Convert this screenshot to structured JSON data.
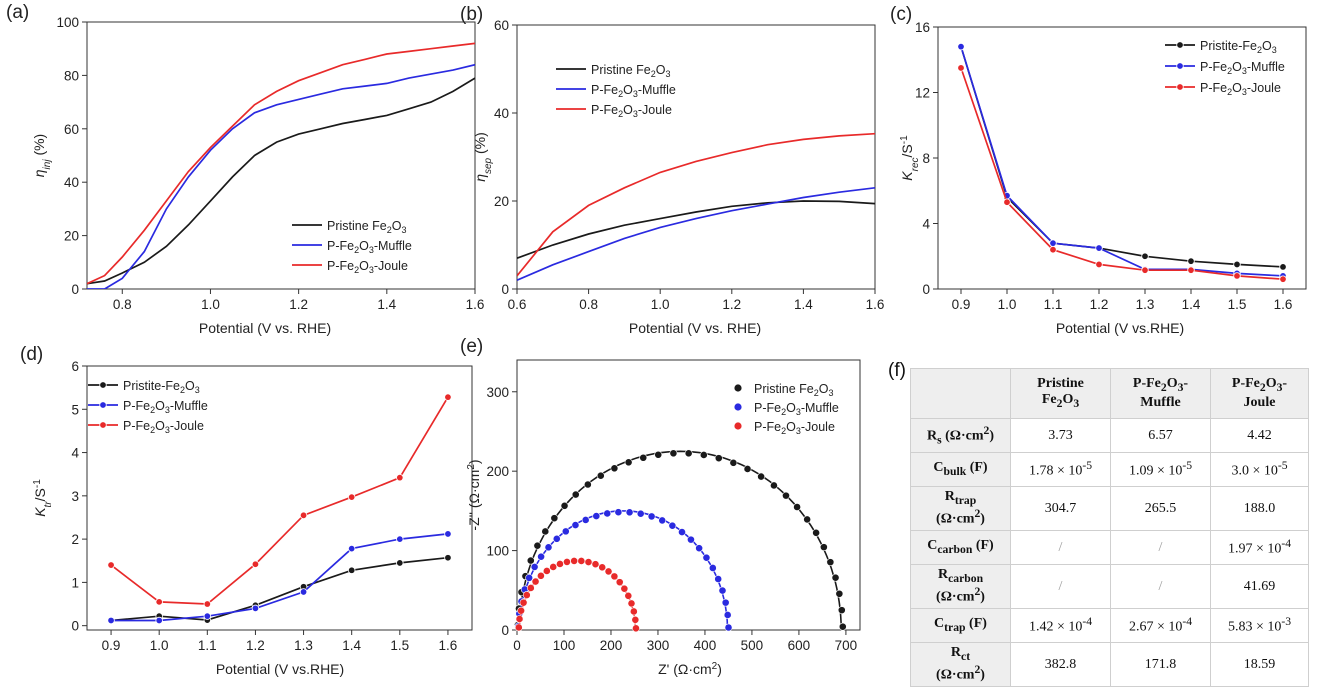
{
  "colors": {
    "black": "#1a1a1a",
    "blue": "#2a2ae0",
    "red": "#e82a2a"
  },
  "chart_data": [
    {
      "panel": "(a)",
      "type": "line",
      "xlabel": "Potential (V vs. RHE)",
      "ylabel": "η_inj (%)",
      "ylabel_main": "η",
      "ylabel_sub": "inj",
      "ylabel_tail": " (%)",
      "xlim": [
        0.72,
        1.6
      ],
      "ylim": [
        0,
        100
      ],
      "xticks": [
        "0.8",
        "1.0",
        "1.2",
        "1.4",
        "1.6"
      ],
      "xtick_values": [
        0.8,
        1.0,
        1.2,
        1.4,
        1.6
      ],
      "yticks": [
        "0",
        "20",
        "40",
        "60",
        "80",
        "100"
      ],
      "ytick_values": [
        0,
        20,
        40,
        60,
        80,
        100
      ],
      "legend": [
        "Pristine Fe2O3",
        "P-Fe2O3-Muffle",
        "P-Fe2O3-Joule"
      ],
      "series": [
        {
          "name": "Pristine Fe2O3",
          "color": "black",
          "x": [
            0.72,
            0.76,
            0.8,
            0.85,
            0.9,
            0.95,
            1.0,
            1.05,
            1.1,
            1.15,
            1.2,
            1.25,
            1.3,
            1.35,
            1.4,
            1.45,
            1.5,
            1.55,
            1.6
          ],
          "y": [
            2,
            3,
            6,
            10,
            16,
            24,
            33,
            42,
            50,
            55,
            58,
            60,
            62,
            63.5,
            65,
            67.5,
            70,
            74,
            79
          ]
        },
        {
          "name": "P-Fe2O3-Muffle",
          "color": "blue",
          "x": [
            0.72,
            0.76,
            0.8,
            0.85,
            0.9,
            0.95,
            1.0,
            1.05,
            1.1,
            1.15,
            1.2,
            1.25,
            1.3,
            1.35,
            1.4,
            1.45,
            1.5,
            1.55,
            1.6
          ],
          "y": [
            0,
            0,
            4,
            14,
            30,
            42,
            52,
            60,
            66,
            69,
            71,
            73,
            75,
            76,
            77,
            79,
            80.5,
            82,
            84
          ]
        },
        {
          "name": "P-Fe2O3-Joule",
          "color": "red",
          "x": [
            0.72,
            0.76,
            0.8,
            0.85,
            0.9,
            0.95,
            1.0,
            1.05,
            1.1,
            1.15,
            1.2,
            1.25,
            1.3,
            1.35,
            1.4,
            1.45,
            1.5,
            1.55,
            1.6
          ],
          "y": [
            2,
            5,
            12,
            22,
            33,
            44,
            53,
            61,
            69,
            74,
            78,
            81,
            84,
            86,
            88,
            89,
            90,
            91,
            92
          ]
        }
      ]
    },
    {
      "panel": "(b)",
      "type": "line",
      "xlabel": "Potential (V vs. RHE)",
      "ylabel": "η_sep (%)",
      "ylabel_main": "η",
      "ylabel_sub": "sep",
      "ylabel_tail": " (%)",
      "xlim": [
        0.6,
        1.6
      ],
      "ylim": [
        0,
        60
      ],
      "xticks": [
        "0.6",
        "0.8",
        "1.0",
        "1.2",
        "1.4",
        "1.6"
      ],
      "xtick_values": [
        0.6,
        0.8,
        1.0,
        1.2,
        1.4,
        1.6
      ],
      "yticks": [
        "0",
        "20",
        "40",
        "60"
      ],
      "ytick_values": [
        0,
        20,
        40,
        60
      ],
      "legend": [
        "Pristine Fe2O3",
        "P-Fe2O3-Muffle",
        "P-Fe2O3-Joule"
      ],
      "series": [
        {
          "name": "Pristine Fe2O3",
          "color": "black",
          "x": [
            0.6,
            0.7,
            0.8,
            0.9,
            1.0,
            1.1,
            1.2,
            1.3,
            1.4,
            1.5,
            1.6
          ],
          "y": [
            7,
            10,
            12.5,
            14.5,
            16,
            17.5,
            18.8,
            19.6,
            20,
            19.9,
            19.4
          ]
        },
        {
          "name": "P-Fe2O3-Muffle",
          "color": "blue",
          "x": [
            0.6,
            0.7,
            0.8,
            0.9,
            1.0,
            1.1,
            1.2,
            1.3,
            1.4,
            1.5,
            1.6
          ],
          "y": [
            2,
            5.5,
            8.5,
            11.5,
            14,
            16,
            17.8,
            19.3,
            20.8,
            22,
            23
          ]
        },
        {
          "name": "P-Fe2O3-Joule",
          "color": "red",
          "x": [
            0.6,
            0.65,
            0.7,
            0.8,
            0.9,
            1.0,
            1.1,
            1.2,
            1.3,
            1.4,
            1.5,
            1.6
          ],
          "y": [
            3,
            8,
            13,
            19,
            23,
            26.5,
            29,
            31,
            32.8,
            34,
            34.8,
            35.3
          ]
        }
      ]
    },
    {
      "panel": "(c)",
      "type": "line",
      "xlabel": "Potential (V vs.RHE)",
      "ylabel": "K_rec/S^-1",
      "ylabel_main": "K",
      "ylabel_sub": "rec",
      "ylabel_tail": "/S",
      "ylabel_sup": "-1",
      "xlim": [
        0.85,
        1.65
      ],
      "ylim": [
        0,
        16
      ],
      "xticks": [
        "0.9",
        "1.0",
        "1.1",
        "1.2",
        "1.3",
        "1.4",
        "1.5",
        "1.6"
      ],
      "xtick_values": [
        0.9,
        1.0,
        1.1,
        1.2,
        1.3,
        1.4,
        1.5,
        1.6
      ],
      "yticks": [
        "0",
        "4",
        "8",
        "12",
        "16"
      ],
      "ytick_values": [
        0,
        4,
        8,
        12,
        16
      ],
      "legend": [
        "Pristite-Fe2O3",
        "P-Fe2O3-Muffle",
        "P-Fe2O3-Joule"
      ],
      "series": [
        {
          "name": "Pristite-Fe2O3",
          "color": "black",
          "x": [
            0.9,
            1.0,
            1.1,
            1.2,
            1.3,
            1.4,
            1.5,
            1.6
          ],
          "y": [
            14.8,
            5.6,
            2.8,
            2.5,
            2.0,
            1.7,
            1.5,
            1.35
          ]
        },
        {
          "name": "P-Fe2O3-Muffle",
          "color": "blue",
          "x": [
            0.9,
            1.0,
            1.1,
            1.2,
            1.3,
            1.4,
            1.5,
            1.6
          ],
          "y": [
            14.8,
            5.7,
            2.8,
            2.5,
            1.2,
            1.2,
            0.95,
            0.8
          ]
        },
        {
          "name": "P-Fe2O3-Joule",
          "color": "red",
          "x": [
            0.9,
            1.0,
            1.1,
            1.2,
            1.3,
            1.4,
            1.5,
            1.6
          ],
          "y": [
            13.5,
            5.3,
            2.4,
            1.5,
            1.15,
            1.15,
            0.8,
            0.6
          ]
        }
      ]
    },
    {
      "panel": "(d)",
      "type": "line",
      "xlabel": "Potential (V vs.RHE)",
      "ylabel": "K_tr/S^-1",
      "ylabel_main": "K",
      "ylabel_sub": "tr",
      "ylabel_tail": "/S",
      "ylabel_sup": "-1",
      "xlim": [
        0.85,
        1.65
      ],
      "ylim": [
        -0.1,
        6
      ],
      "xticks": [
        "0.9",
        "1.0",
        "1.1",
        "1.2",
        "1.3",
        "1.4",
        "1.5",
        "1.6"
      ],
      "xtick_values": [
        0.9,
        1.0,
        1.1,
        1.2,
        1.3,
        1.4,
        1.5,
        1.6
      ],
      "yticks": [
        "0",
        "1",
        "2",
        "3",
        "4",
        "5",
        "6"
      ],
      "ytick_values": [
        0,
        1,
        2,
        3,
        4,
        5,
        6
      ],
      "legend": [
        "Pristite-Fe2O3",
        "P-Fe2O3-Muffle",
        "P-Fe2O3-Joule"
      ],
      "series": [
        {
          "name": "Pristite-Fe2O3",
          "color": "black",
          "x": [
            0.9,
            1.0,
            1.1,
            1.2,
            1.3,
            1.4,
            1.5,
            1.6
          ],
          "y": [
            0.12,
            0.22,
            0.13,
            0.47,
            0.9,
            1.28,
            1.45,
            1.57
          ]
        },
        {
          "name": "P-Fe2O3-Muffle",
          "color": "blue",
          "x": [
            0.9,
            1.0,
            1.1,
            1.2,
            1.3,
            1.4,
            1.5,
            1.6
          ],
          "y": [
            0.12,
            0.12,
            0.22,
            0.4,
            0.78,
            1.78,
            2.0,
            2.12
          ]
        },
        {
          "name": "P-Fe2O3-Joule",
          "color": "red",
          "x": [
            0.9,
            1.0,
            1.1,
            1.2,
            1.3,
            1.4,
            1.5,
            1.6
          ],
          "y": [
            1.4,
            0.55,
            0.5,
            1.42,
            2.55,
            2.97,
            3.42,
            5.28
          ]
        }
      ]
    },
    {
      "panel": "(e)",
      "type": "scatter",
      "xlabel": "Z' (Ω·cm²)",
      "ylabel": "-Z'' (Ω·cm²)",
      "ylabel_main": "-Z'' (Ω·cm",
      "ylabel_sup": "2",
      "ylabel_tail": ")",
      "xlabel_main": "Z' (Ω·cm",
      "xlabel_sup": "2",
      "xlabel_tail": ")",
      "xlim": [
        0,
        730
      ],
      "ylim": [
        0,
        340
      ],
      "xticks": [
        "0",
        "100",
        "200",
        "300",
        "400",
        "500",
        "600",
        "700"
      ],
      "xtick_values": [
        0,
        100,
        200,
        300,
        400,
        500,
        600,
        700
      ],
      "yticks": [
        "0",
        "100",
        "200",
        "300"
      ],
      "ytick_values": [
        0,
        100,
        200,
        300
      ],
      "legend": [
        "Pristine Fe2O3",
        "P-Fe2O3-Muffle",
        "P-Fe2O3-Joule"
      ],
      "series": [
        {
          "name": "Pristine Fe2O3",
          "color": "black",
          "arc": {
            "z_start": 5,
            "z_end": 690,
            "peak": 225
          },
          "n_points": 34
        },
        {
          "name": "P-Fe2O3-Muffle",
          "color": "blue",
          "arc": {
            "z_start": 5,
            "z_end": 448,
            "peak": 150
          },
          "n_points": 30
        },
        {
          "name": "P-Fe2O3-Joule",
          "color": "red",
          "arc": {
            "z_start": 5,
            "z_end": 252,
            "peak": 88
          },
          "n_points": 26
        }
      ]
    },
    {
      "panel": "(f)",
      "type": "table",
      "columns": [
        "",
        "Pristine Fe2O3",
        "P-Fe2O3-Muffle",
        "P-Fe2O3-Joule"
      ],
      "rows": [
        [
          "Rs (Ω·cm²)",
          "3.73",
          "6.57",
          "4.42"
        ],
        [
          "Cbulk (F)",
          "1.78 × 10-5",
          "1.09 × 10-5",
          "3.0 × 10-5"
        ],
        [
          "Rtrap (Ω·cm²)",
          "304.7",
          "265.5",
          "188.0"
        ],
        [
          "Ccarbon (F)",
          "/",
          "/",
          "1.97 × 10-4"
        ],
        [
          "Rcarbon (Ω·cm²)",
          "/",
          "/",
          "41.69"
        ],
        [
          "Ctrap (F)",
          "1.42 × 10-4",
          "2.67 × 10-4",
          "5.83 × 10-3"
        ],
        [
          "Rct (Ω·cm²)",
          "382.8",
          "171.8",
          "18.59"
        ]
      ]
    }
  ]
}
